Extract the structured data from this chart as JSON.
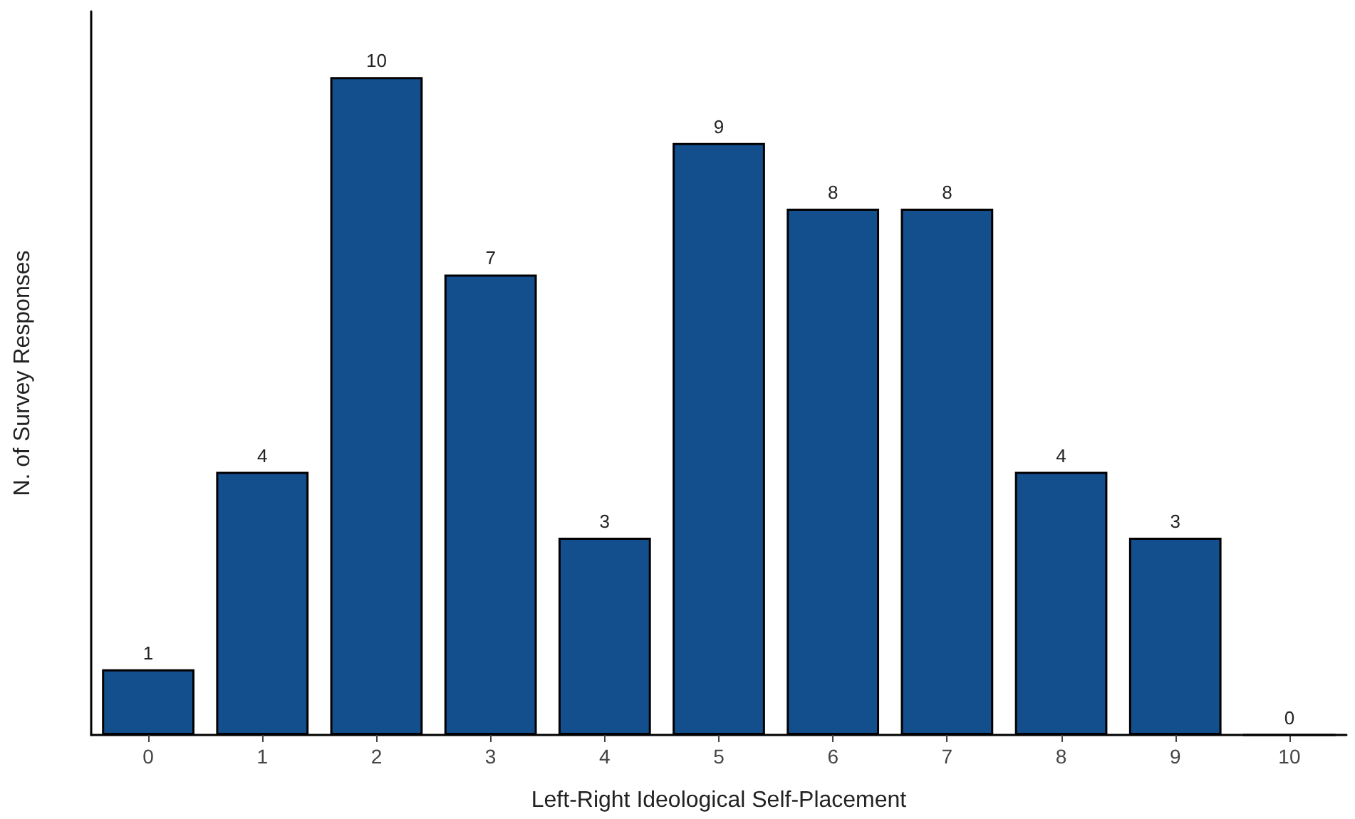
{
  "chart_data": {
    "type": "bar",
    "xlabel": "Left-Right Ideological Self-Placement",
    "ylabel": "N. of Survey Responses",
    "categories": [
      "0",
      "1",
      "2",
      "3",
      "4",
      "5",
      "6",
      "7",
      "8",
      "9",
      "10"
    ],
    "values": [
      1,
      4,
      10,
      7,
      3,
      9,
      8,
      8,
      4,
      3,
      0
    ],
    "color": "#134f8c",
    "ylim": [
      0,
      11
    ],
    "data_labels": true,
    "tick_labels": "x"
  }
}
